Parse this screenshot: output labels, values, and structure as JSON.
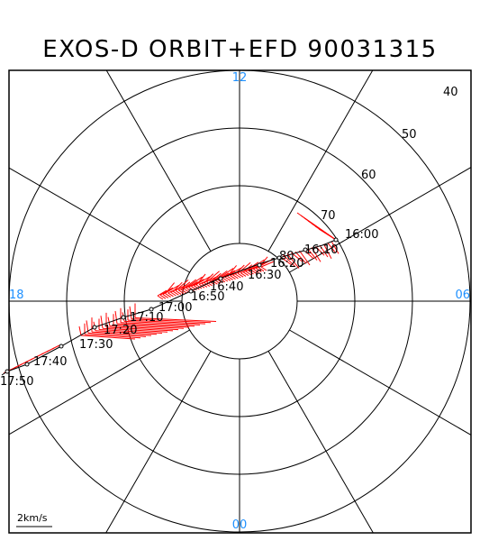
{
  "title": "EXOS-D ORBIT+EFD 90031315",
  "mlt_labels": {
    "top": "12",
    "left": "18",
    "right": "06",
    "bottom": "00"
  },
  "latitude_labels": [
    "40",
    "50",
    "60",
    "70",
    "80"
  ],
  "scale_label": "2km/s",
  "colors": {
    "axes": "#000000",
    "orbit": "#000000",
    "efd_vectors": "#ff0000",
    "mlt_labels": "#1e90ff"
  },
  "orbit_times": [
    "16:00",
    "16:10",
    "16:20",
    "16:30",
    "16:40",
    "16:50",
    "17:00",
    "17:10",
    "17:20",
    "17:30",
    "17:40",
    "17:50"
  ]
}
